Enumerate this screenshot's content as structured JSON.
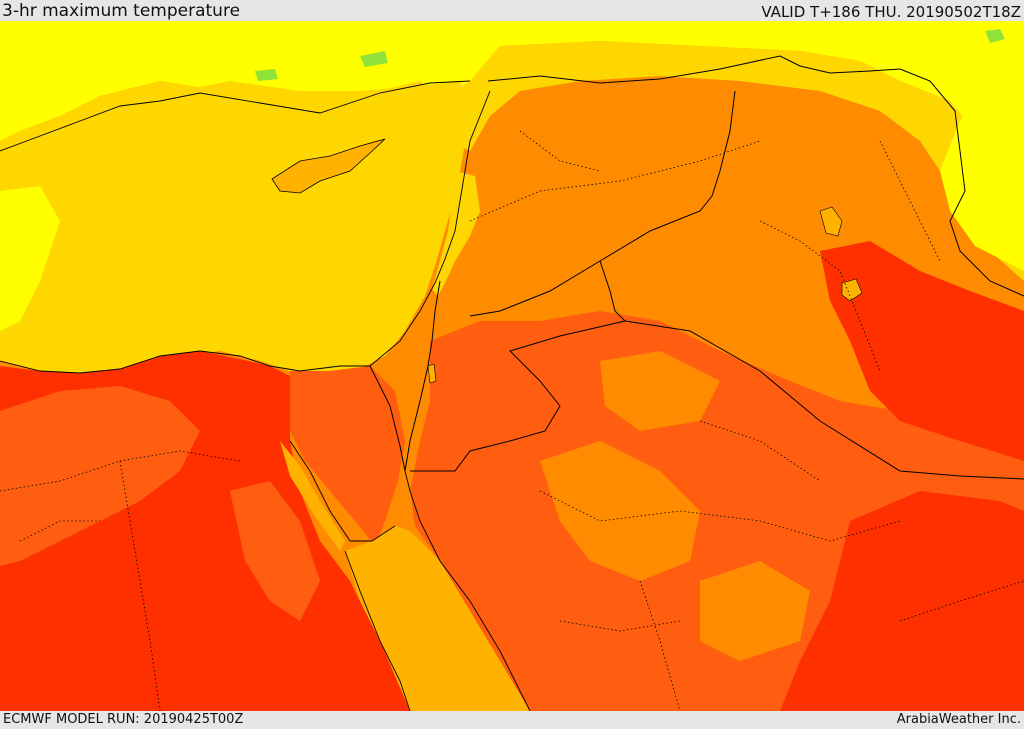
{
  "header": {
    "title": "3-hr maximum temperature",
    "valid": "VALID T+186 THU. 20190502T18Z"
  },
  "footer": {
    "model_run": "ECMWF MODEL RUN: 20190425T00Z",
    "credit": "ArabiaWeather Inc."
  },
  "map": {
    "region": "Eastern Mediterranean and Middle East",
    "field": "3-hr maximum temperature",
    "colors": {
      "green": "#8ee23a",
      "yellow": "#ffff00",
      "gold": "#ffd700",
      "amber": "#ffb300",
      "orange": "#ff8c00",
      "red_orange": "#ff5e10",
      "red": "#ff3000",
      "country_border": "#000000",
      "province_border": "#000000"
    }
  }
}
